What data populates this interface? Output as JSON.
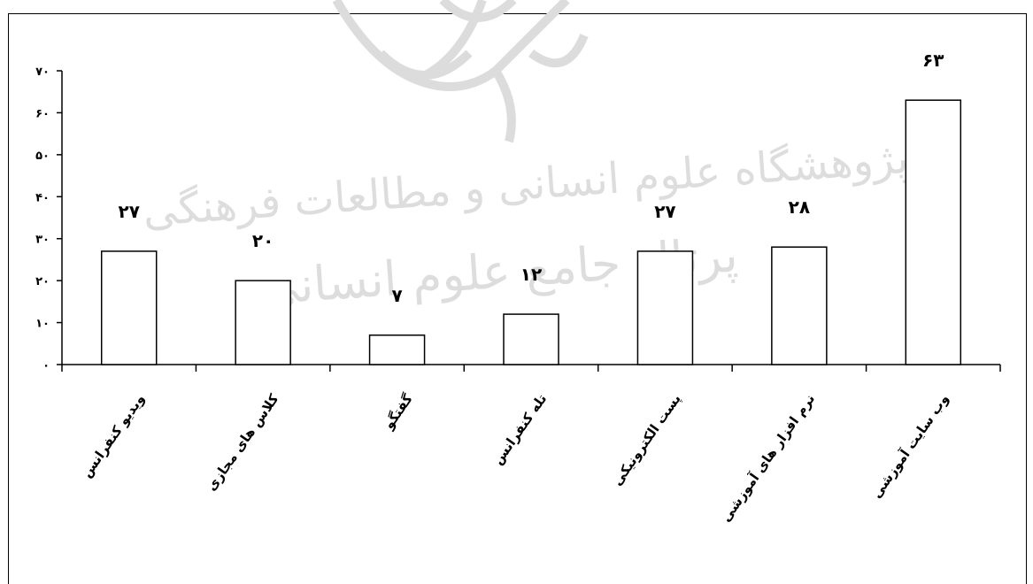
{
  "chart_data": {
    "type": "bar",
    "categories": [
      "ویدیو کنفرانس",
      "کلاس های مجازی",
      "گفتگو",
      "تله کنفرانس",
      "پست الکترونیکی",
      "نرم افزار های آموزشی",
      "وب سایت آموزشی"
    ],
    "values": [
      27,
      20,
      7,
      12,
      27,
      28,
      63
    ],
    "data_labels": [
      "۲۷",
      "۲۰",
      "۷",
      "۱۲",
      "۲۷",
      "۲۸",
      "۶۳"
    ],
    "y_ticks": [
      0,
      10,
      20,
      30,
      40,
      50,
      60,
      70
    ],
    "y_tick_labels": [
      "۰",
      "۱۰",
      "۲۰",
      "۳۰",
      "۴۰",
      "۵۰",
      "۶۰",
      "۷۰"
    ],
    "ylim": [
      0,
      70
    ],
    "title": "",
    "xlabel": "",
    "ylabel": "",
    "grid": false,
    "bar_fill": "#ffffff",
    "bar_stroke": "#000000"
  },
  "watermark": {
    "line1": "پژوهشگاه علوم انسانی و مطالعات فرهنگی",
    "line2": "پرتال جامع علوم انسانی",
    "color": "#d9d9d9"
  }
}
